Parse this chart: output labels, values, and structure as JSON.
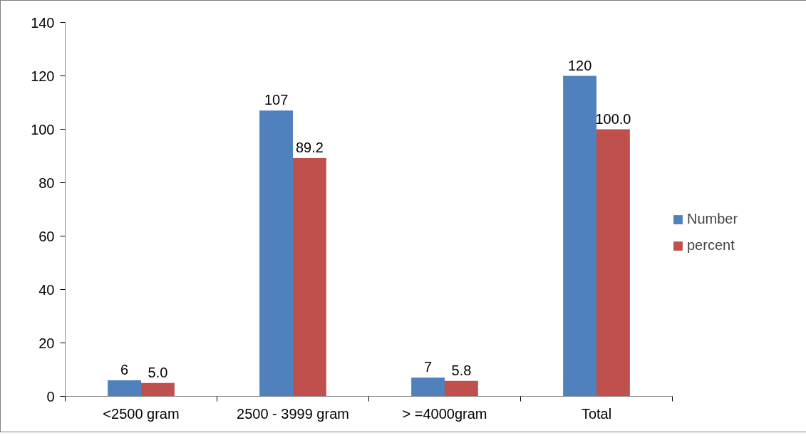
{
  "chart_data": {
    "type": "bar",
    "categories": [
      "<2500 gram",
      "2500 - 3999 gram",
      "> =4000gram",
      "Total"
    ],
    "series": [
      {
        "name": "Number",
        "color": "#4f81bd",
        "values": [
          6,
          107,
          7,
          120
        ],
        "value_labels": [
          "6",
          "107",
          "7",
          "120"
        ]
      },
      {
        "name": "percent",
        "color": "#c0504d",
        "values": [
          5.0,
          89.2,
          5.8,
          100.0
        ],
        "value_labels": [
          "5.0",
          "89.2",
          "5.8",
          "100.0"
        ]
      }
    ],
    "ylim": [
      0,
      140
    ],
    "yticks": [
      0,
      20,
      40,
      60,
      80,
      100,
      120,
      140
    ],
    "grid": false,
    "legend": "right"
  }
}
